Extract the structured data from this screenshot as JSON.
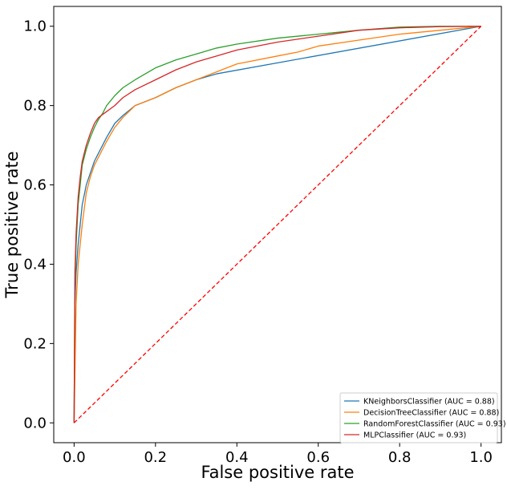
{
  "chart_data": {
    "type": "line",
    "title": "",
    "xlabel": "False positive rate",
    "ylabel": "True positive rate",
    "xlim": [
      -0.05,
      1.05
    ],
    "ylim": [
      -0.05,
      1.05
    ],
    "xticks": [
      "0.0",
      "0.2",
      "0.4",
      "0.6",
      "0.8",
      "1.0"
    ],
    "yticks": [
      "0.0",
      "0.2",
      "0.4",
      "0.6",
      "0.8",
      "1.0"
    ],
    "grid": false,
    "legend_position": "lower-right",
    "series": [
      {
        "name": "KNeighborsClassifier (AUC = 0.88)",
        "color": "#1f77b4",
        "x": [
          0,
          0.002,
          0.005,
          0.01,
          0.015,
          0.02,
          0.03,
          0.04,
          0.05,
          0.06,
          0.08,
          0.1,
          0.12,
          0.15,
          0.2,
          0.25,
          0.3,
          0.35,
          1.0
        ],
        "y": [
          0,
          0.3,
          0.38,
          0.45,
          0.5,
          0.55,
          0.6,
          0.63,
          0.66,
          0.68,
          0.72,
          0.755,
          0.775,
          0.8,
          0.82,
          0.845,
          0.865,
          0.88,
          1.0
        ]
      },
      {
        "name": "DecisionTreeClassifier (AUC = 0.88)",
        "color": "#ff7f0e",
        "x": [
          0,
          0.005,
          0.01,
          0.02,
          0.03,
          0.04,
          0.05,
          0.06,
          0.08,
          0.1,
          0.12,
          0.15,
          0.2,
          0.25,
          0.3,
          0.35,
          0.4,
          0.5,
          0.55,
          0.6,
          0.7,
          0.8,
          0.9,
          1.0
        ],
        "y": [
          0,
          0.3,
          0.4,
          0.5,
          0.58,
          0.62,
          0.65,
          0.67,
          0.71,
          0.745,
          0.77,
          0.8,
          0.82,
          0.845,
          0.865,
          0.885,
          0.905,
          0.925,
          0.935,
          0.95,
          0.965,
          0.98,
          0.99,
          1.0
        ]
      },
      {
        "name": "RandomForestClassifier (AUC = 0.93)",
        "color": "#2ca02c",
        "x": [
          0,
          0.002,
          0.005,
          0.01,
          0.015,
          0.02,
          0.03,
          0.04,
          0.05,
          0.06,
          0.07,
          0.08,
          0.1,
          0.12,
          0.15,
          0.2,
          0.25,
          0.3,
          0.35,
          0.4,
          0.5,
          0.6,
          0.7,
          0.8,
          0.9,
          1.0
        ],
        "y": [
          0,
          0.35,
          0.45,
          0.55,
          0.6,
          0.65,
          0.69,
          0.72,
          0.745,
          0.765,
          0.78,
          0.8,
          0.825,
          0.845,
          0.865,
          0.895,
          0.915,
          0.93,
          0.945,
          0.955,
          0.97,
          0.98,
          0.99,
          0.998,
          1.0,
          1.0
        ]
      },
      {
        "name": "MLPClassifier (AUC = 0.93)",
        "color": "#d62728",
        "x": [
          0,
          0.002,
          0.005,
          0.01,
          0.015,
          0.02,
          0.03,
          0.04,
          0.05,
          0.06,
          0.08,
          0.1,
          0.12,
          0.15,
          0.2,
          0.25,
          0.3,
          0.35,
          0.4,
          0.5,
          0.6,
          0.7,
          0.8,
          0.9,
          1.0
        ],
        "y": [
          0,
          0.38,
          0.48,
          0.57,
          0.62,
          0.66,
          0.7,
          0.73,
          0.755,
          0.77,
          0.785,
          0.8,
          0.82,
          0.84,
          0.865,
          0.89,
          0.91,
          0.925,
          0.94,
          0.96,
          0.975,
          0.99,
          0.996,
          0.999,
          1.0
        ]
      },
      {
        "name": "",
        "color": "#ff0000",
        "dashed": true,
        "x": [
          0,
          1
        ],
        "y": [
          0,
          1
        ]
      }
    ]
  }
}
